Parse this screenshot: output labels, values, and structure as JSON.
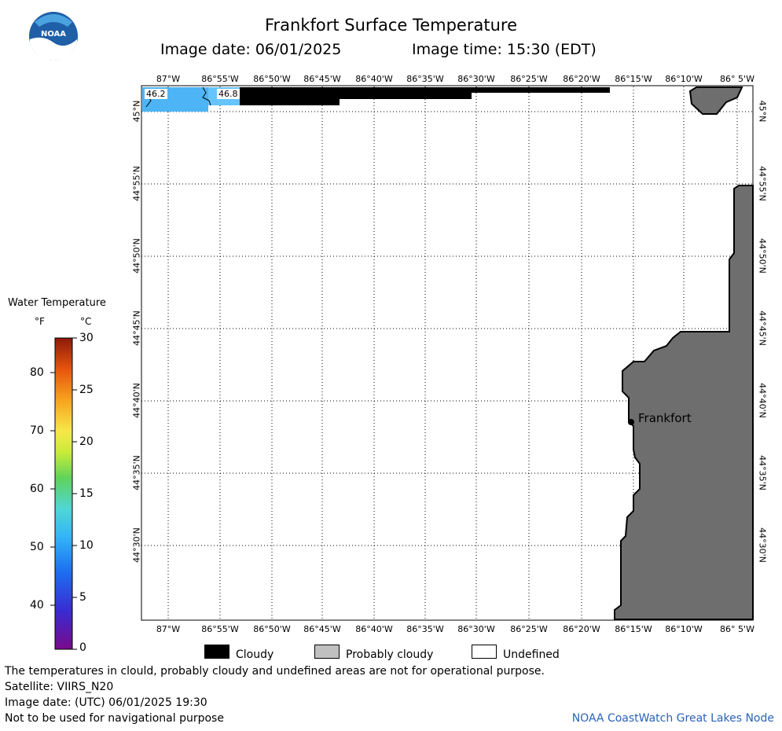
{
  "logo": {
    "text": "NOAA"
  },
  "header": {
    "title": "Frankfort Surface Temperature",
    "image_date": "Image date: 06/01/2025",
    "image_time": "Image time: 15:30 (EDT)"
  },
  "map": {
    "lon_labels": [
      "87°W",
      "86°55'W",
      "86°50'W",
      "86°45'W",
      "86°40'W",
      "86°35'W",
      "86°30'W",
      "86°25'W",
      "86°20'W",
      "86°15'W",
      "86°10'W",
      "86° 5'W"
    ],
    "lat_labels": [
      "45°N",
      "44°55'N",
      "44°50'N",
      "44°45'N",
      "44°40'N",
      "44°35'N",
      "44°30'N"
    ],
    "city": "Frankfort",
    "temp_labels": [
      "46.2",
      "46.8"
    ],
    "colors": {
      "land": "#6e6e6e",
      "cloud": "#000000",
      "water_cold": "#4db4f5",
      "water_mid": "#66c4ff"
    }
  },
  "colorbar": {
    "title": "Water Temperature",
    "unit_f": "°F",
    "unit_c": "°C",
    "f_labels": [
      "80",
      "70",
      "60",
      "50",
      "40"
    ],
    "c_labels": [
      "30",
      "25",
      "20",
      "15",
      "10",
      "5",
      "0"
    ]
  },
  "legend": {
    "cloudy": "Cloudy",
    "probably_cloudy": "Probably cloudy",
    "undefined": "Undefined"
  },
  "footer": {
    "disclaimer": "The temperatures in clould, probably cloudy and undefined areas are not for operational purpose.",
    "satellite": "Satellite: VIIRS_N20",
    "utc_date": "Image date: (UTC) 06/01/2025  19:30",
    "nav": "Not to be used for navigational purpose",
    "credit": "NOAA CoastWatch Great Lakes Node"
  }
}
